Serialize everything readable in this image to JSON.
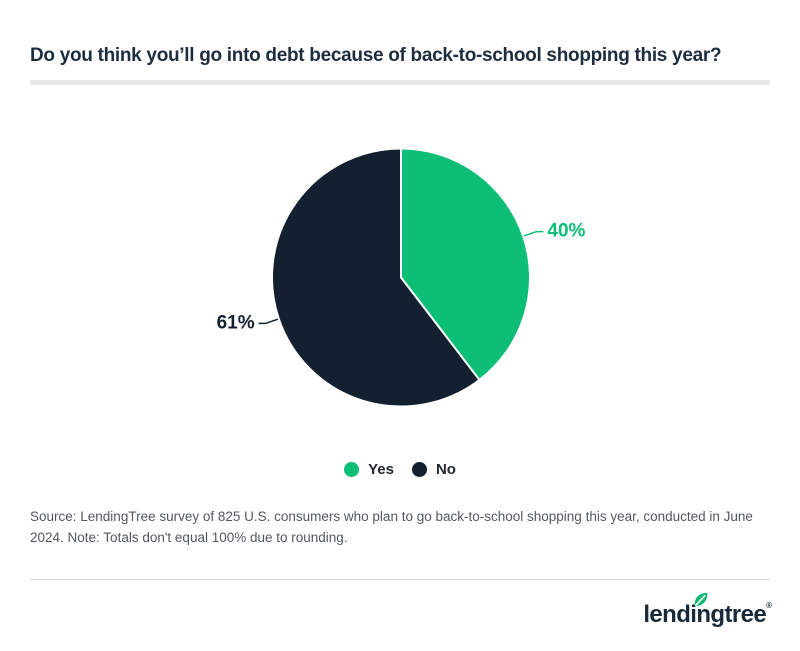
{
  "header": {
    "title": "Do you think you’ll go into debt because of back-to-school shopping this year?"
  },
  "chart_data": {
    "type": "pie",
    "title": "Do you think you’ll go into debt because of back-to-school shopping this year?",
    "labels": [
      "Yes",
      "No"
    ],
    "values": [
      40,
      61
    ],
    "data_labels": [
      "40%",
      "61%"
    ],
    "colors": [
      "#0dbe76",
      "#13202f"
    ],
    "start_angle": "top",
    "direction": "clockwise",
    "legend_position": "bottom"
  },
  "source_note": "Source: LendingTree survey of 825 U.S. consumers who plan to go back-to-school shopping this year, conducted in June 2024. Note: Totals don't equal 100% due to rounding.",
  "footer": {
    "brand": "lendingtree",
    "registered": "®"
  }
}
